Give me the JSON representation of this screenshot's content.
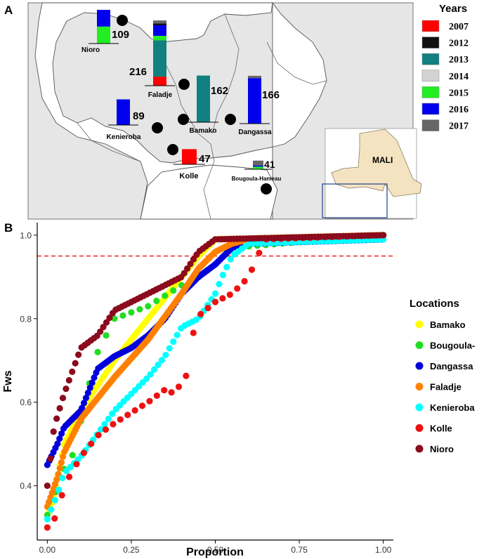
{
  "panel_a": {
    "label": "A",
    "country_label": "MALI",
    "year_legend": {
      "title": "Years",
      "items": [
        {
          "year": "2007",
          "color": "#ff0000"
        },
        {
          "year": "2012",
          "color": "#111111"
        },
        {
          "year": "2013",
          "color": "#108080"
        },
        {
          "year": "2014",
          "color": "#d3d3d3"
        },
        {
          "year": "2015",
          "color": "#22ee22"
        },
        {
          "year": "2016",
          "color": "#0000ee"
        },
        {
          "year": "2017",
          "color": "#666666"
        }
      ]
    },
    "sites": [
      {
        "name": "Nioro",
        "total": "109",
        "segments": [
          {
            "year": "2015",
            "value": 55
          },
          {
            "year": "2016",
            "value": 54
          }
        ]
      },
      {
        "name": "Faladje",
        "total": "216",
        "segments": [
          {
            "year": "2007",
            "value": 30
          },
          {
            "year": "2013",
            "value": 120
          },
          {
            "year": "2015",
            "value": 15
          },
          {
            "year": "2016",
            "value": 35
          },
          {
            "year": "2012",
            "value": 6
          },
          {
            "year": "2017",
            "value": 10
          }
        ]
      },
      {
        "name": "Bamako",
        "total": "162",
        "segments": [
          {
            "year": "2013",
            "value": 162
          }
        ]
      },
      {
        "name": "Dangassa",
        "total": "166",
        "segments": [
          {
            "year": "2016",
            "value": 158
          },
          {
            "year": "2017",
            "value": 8
          }
        ]
      },
      {
        "name": "Kenieroba",
        "total": "89",
        "segments": [
          {
            "year": "2016",
            "value": 89
          }
        ]
      },
      {
        "name": "Kolle",
        "total": "47",
        "segments": [
          {
            "year": "2007",
            "value": 47
          }
        ]
      },
      {
        "name": "Bougoula-Hameau",
        "total": "41",
        "segments": [
          {
            "year": "2015",
            "value": 12
          },
          {
            "year": "2016",
            "value": 6
          },
          {
            "year": "2017",
            "value": 23
          }
        ]
      }
    ]
  },
  "chart_data": {
    "type": "scatter",
    "panel_label": "B",
    "title": "",
    "xlabel": "Proportion",
    "ylabel": "Fws",
    "xlim": [
      -0.03,
      1.03
    ],
    "ylim": [
      0.27,
      1.03
    ],
    "xticks": [
      "0.00",
      "0.25",
      "0.50",
      "0.75",
      "1.00"
    ],
    "yticks": [
      "0.4",
      "0.6",
      "0.8",
      "1.0"
    ],
    "threshold_line": 0.95,
    "legend": {
      "title": "Locations",
      "position": "right"
    },
    "series": [
      {
        "name": "Bamako",
        "color": "#ffff00",
        "n": 162,
        "curve": [
          [
            0,
            0.32
          ],
          [
            0.02,
            0.38
          ],
          [
            0.05,
            0.5
          ],
          [
            0.1,
            0.58
          ],
          [
            0.2,
            0.7
          ],
          [
            0.3,
            0.8
          ],
          [
            0.4,
            0.9
          ],
          [
            0.45,
            0.95
          ],
          [
            0.5,
            0.99
          ],
          [
            1.0,
            1.0
          ]
        ]
      },
      {
        "name": "Bougoula-",
        "color": "#22dd22",
        "n": 41,
        "curve": [
          [
            0,
            0.33
          ],
          [
            0.05,
            0.44
          ],
          [
            0.08,
            0.48
          ],
          [
            0.12,
            0.63
          ],
          [
            0.15,
            0.72
          ],
          [
            0.2,
            0.8
          ],
          [
            0.3,
            0.83
          ],
          [
            0.4,
            0.88
          ],
          [
            0.45,
            0.9
          ],
          [
            0.5,
            0.93
          ],
          [
            0.55,
            0.97
          ],
          [
            1.0,
            1.0
          ]
        ]
      },
      {
        "name": "Dangassa",
        "color": "#0000dd",
        "n": 166,
        "curve": [
          [
            0,
            0.45
          ],
          [
            0.03,
            0.5
          ],
          [
            0.05,
            0.54
          ],
          [
            0.1,
            0.58
          ],
          [
            0.15,
            0.68
          ],
          [
            0.2,
            0.71
          ],
          [
            0.25,
            0.73
          ],
          [
            0.3,
            0.76
          ],
          [
            0.35,
            0.8
          ],
          [
            0.4,
            0.86
          ],
          [
            0.45,
            0.9
          ],
          [
            0.5,
            0.93
          ],
          [
            0.55,
            0.97
          ],
          [
            0.6,
            0.98
          ],
          [
            1.0,
            0.99
          ]
        ]
      },
      {
        "name": "Faladje",
        "color": "#ff8000",
        "n": 216,
        "curve": [
          [
            0,
            0.35
          ],
          [
            0.03,
            0.42
          ],
          [
            0.05,
            0.48
          ],
          [
            0.1,
            0.56
          ],
          [
            0.2,
            0.66
          ],
          [
            0.3,
            0.75
          ],
          [
            0.4,
            0.86
          ],
          [
            0.45,
            0.92
          ],
          [
            0.5,
            0.96
          ],
          [
            0.55,
            0.98
          ],
          [
            0.6,
            0.99
          ],
          [
            1.0,
            1.0
          ]
        ]
      },
      {
        "name": "Kenieroba",
        "color": "#00ffff",
        "n": 89,
        "curve": [
          [
            0,
            0.32
          ],
          [
            0.03,
            0.38
          ],
          [
            0.05,
            0.43
          ],
          [
            0.1,
            0.47
          ],
          [
            0.2,
            0.58
          ],
          [
            0.3,
            0.66
          ],
          [
            0.35,
            0.71
          ],
          [
            0.4,
            0.78
          ],
          [
            0.45,
            0.8
          ],
          [
            0.5,
            0.86
          ],
          [
            0.52,
            0.9
          ],
          [
            0.55,
            0.95
          ],
          [
            0.6,
            0.98
          ],
          [
            1.0,
            0.99
          ]
        ]
      },
      {
        "name": "Kolle",
        "color": "#ee1111",
        "n": 47,
        "curve": [
          [
            0,
            0.3
          ],
          [
            0.03,
            0.33
          ],
          [
            0.05,
            0.4
          ],
          [
            0.1,
            0.47
          ],
          [
            0.15,
            0.52
          ],
          [
            0.2,
            0.55
          ],
          [
            0.3,
            0.6
          ],
          [
            0.35,
            0.63
          ],
          [
            0.38,
            0.62
          ],
          [
            0.4,
            0.65
          ],
          [
            0.42,
            0.67
          ],
          [
            0.44,
            0.8
          ],
          [
            0.5,
            0.84
          ],
          [
            0.55,
            0.86
          ],
          [
            0.6,
            0.9
          ],
          [
            0.62,
            0.94
          ],
          [
            0.65,
            0.99
          ],
          [
            1.0,
            1.0
          ]
        ]
      },
      {
        "name": "Nioro",
        "color": "#8b0a1e",
        "n": 109,
        "curve": [
          [
            0,
            0.4
          ],
          [
            0.02,
            0.54
          ],
          [
            0.05,
            0.62
          ],
          [
            0.1,
            0.73
          ],
          [
            0.15,
            0.76
          ],
          [
            0.2,
            0.82
          ],
          [
            0.3,
            0.86
          ],
          [
            0.4,
            0.9
          ],
          [
            0.45,
            0.96
          ],
          [
            0.5,
            0.99
          ],
          [
            1.0,
            1.0
          ]
        ]
      }
    ]
  }
}
